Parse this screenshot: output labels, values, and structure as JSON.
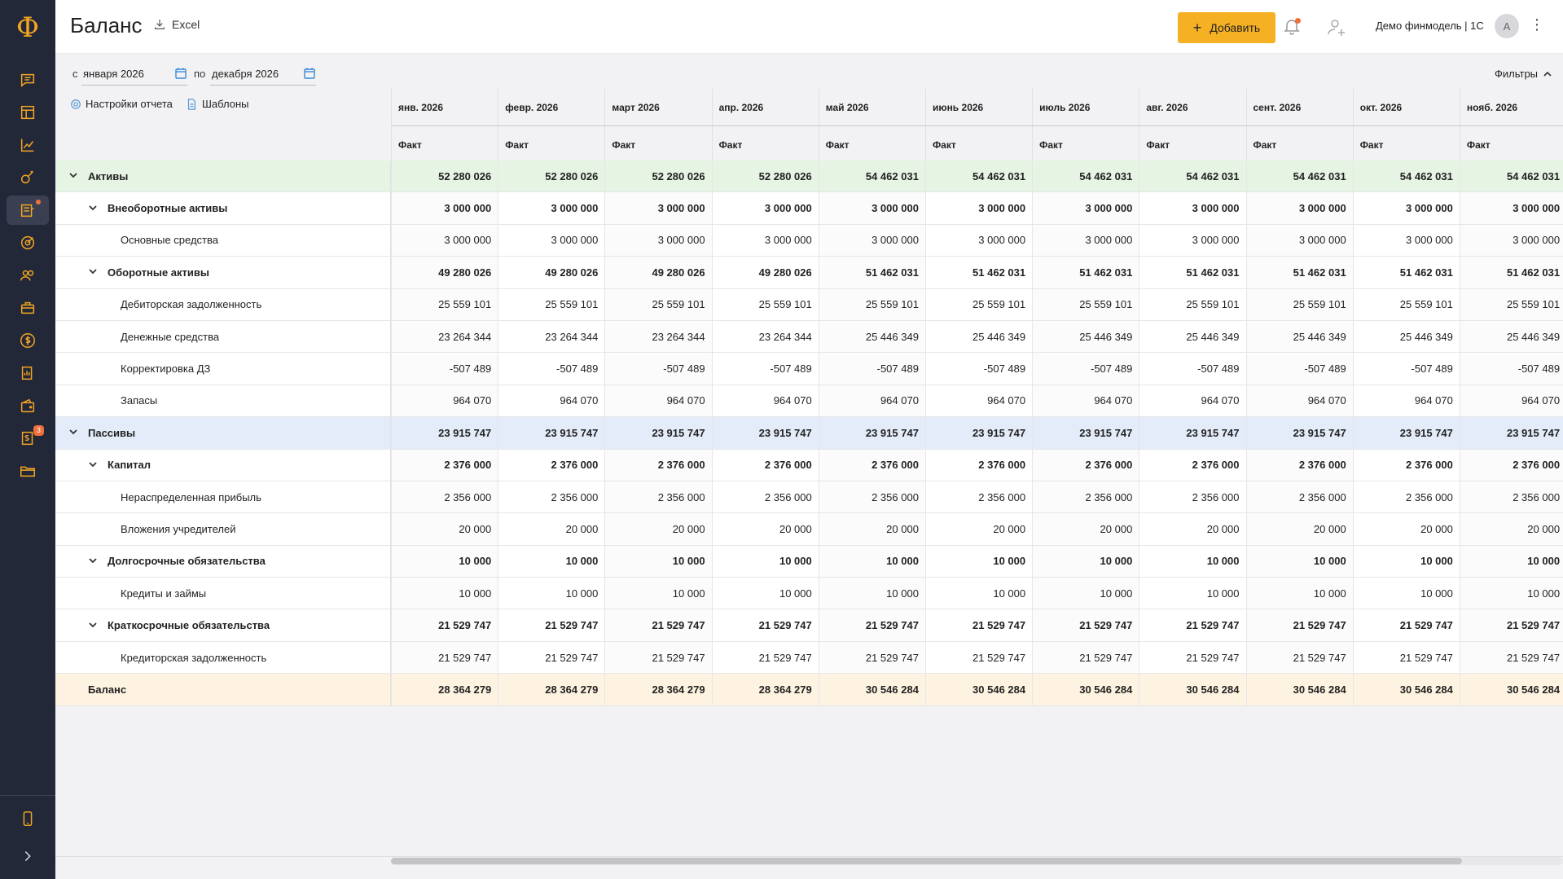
{
  "app": {
    "logo": "Ф",
    "title": "Баланс",
    "export_label": "Excel"
  },
  "header": {
    "add_label": "Добавить",
    "workspace": "Демо финмодель | 1С",
    "avatar_initial": "А",
    "more": "⋮"
  },
  "sidebar": {
    "items": [
      {
        "icon": "chat-icon"
      },
      {
        "icon": "table-icon"
      },
      {
        "icon": "chart-icon"
      },
      {
        "icon": "analytics-icon"
      },
      {
        "icon": "balance-icon",
        "active": true,
        "dot": true
      },
      {
        "icon": "target-icon"
      },
      {
        "icon": "users-icon"
      },
      {
        "icon": "briefcase-icon"
      },
      {
        "icon": "dollar-icon"
      },
      {
        "icon": "reports-icon"
      },
      {
        "icon": "wallet-icon"
      },
      {
        "icon": "invoice-icon",
        "badge": "3"
      },
      {
        "icon": "folder-icon"
      }
    ],
    "bottom": [
      {
        "icon": "mobile-icon"
      },
      {
        "icon": "expand-icon"
      }
    ]
  },
  "filters": {
    "from_prefix": "с",
    "from_value": "января 2026",
    "to_prefix": "по",
    "to_value": "декабря 2026",
    "filters_label": "Фильтры",
    "settings_label": "Настройки отчета",
    "templates_label": "Шаблоны"
  },
  "table": {
    "months": [
      "янв. 2026",
      "февр. 2026",
      "март 2026",
      "апр. 2026",
      "май 2026",
      "июнь 2026",
      "июль 2026",
      "авг. 2026",
      "сент. 2026",
      "окт. 2026",
      "нояб. 2026"
    ],
    "sub_header": "Факт",
    "rows": [
      {
        "label": "Активы",
        "level": 0,
        "kind": "assets",
        "bold": true,
        "chevron": true,
        "values": [
          "52 280 026",
          "52 280 026",
          "52 280 026",
          "52 280 026",
          "54 462 031",
          "54 462 031",
          "54 462 031",
          "54 462 031",
          "54 462 031",
          "54 462 031",
          "54 462 031"
        ]
      },
      {
        "label": "Внеоборотные активы",
        "level": 1,
        "bold": true,
        "chevron": true,
        "values": [
          "3 000 000",
          "3 000 000",
          "3 000 000",
          "3 000 000",
          "3 000 000",
          "3 000 000",
          "3 000 000",
          "3 000 000",
          "3 000 000",
          "3 000 000",
          "3 000 000"
        ]
      },
      {
        "label": "Основные средства",
        "level": 2,
        "values": [
          "3 000 000",
          "3 000 000",
          "3 000 000",
          "3 000 000",
          "3 000 000",
          "3 000 000",
          "3 000 000",
          "3 000 000",
          "3 000 000",
          "3 000 000",
          "3 000 000"
        ]
      },
      {
        "label": "Оборотные активы",
        "level": 1,
        "bold": true,
        "chevron": true,
        "values": [
          "49 280 026",
          "49 280 026",
          "49 280 026",
          "49 280 026",
          "51 462 031",
          "51 462 031",
          "51 462 031",
          "51 462 031",
          "51 462 031",
          "51 462 031",
          "51 462 031"
        ]
      },
      {
        "label": "Дебиторская задолженность",
        "level": 2,
        "values": [
          "25 559 101",
          "25 559 101",
          "25 559 101",
          "25 559 101",
          "25 559 101",
          "25 559 101",
          "25 559 101",
          "25 559 101",
          "25 559 101",
          "25 559 101",
          "25 559 101"
        ]
      },
      {
        "label": "Денежные средства",
        "level": 2,
        "values": [
          "23 264 344",
          "23 264 344",
          "23 264 344",
          "23 264 344",
          "25 446 349",
          "25 446 349",
          "25 446 349",
          "25 446 349",
          "25 446 349",
          "25 446 349",
          "25 446 349"
        ]
      },
      {
        "label": "Корректировка ДЗ",
        "level": 2,
        "values": [
          "-507 489",
          "-507 489",
          "-507 489",
          "-507 489",
          "-507 489",
          "-507 489",
          "-507 489",
          "-507 489",
          "-507 489",
          "-507 489",
          "-507 489"
        ]
      },
      {
        "label": "Запасы",
        "level": 2,
        "values": [
          "964 070",
          "964 070",
          "964 070",
          "964 070",
          "964 070",
          "964 070",
          "964 070",
          "964 070",
          "964 070",
          "964 070",
          "964 070"
        ]
      },
      {
        "label": "Пассивы",
        "level": 0,
        "kind": "liab",
        "bold": true,
        "chevron": true,
        "values": [
          "23 915 747",
          "23 915 747",
          "23 915 747",
          "23 915 747",
          "23 915 747",
          "23 915 747",
          "23 915 747",
          "23 915 747",
          "23 915 747",
          "23 915 747",
          "23 915 747"
        ]
      },
      {
        "label": "Капитал",
        "level": 1,
        "bold": true,
        "chevron": true,
        "values": [
          "2 376 000",
          "2 376 000",
          "2 376 000",
          "2 376 000",
          "2 376 000",
          "2 376 000",
          "2 376 000",
          "2 376 000",
          "2 376 000",
          "2 376 000",
          "2 376 000"
        ]
      },
      {
        "label": "Нераспределенная прибыль",
        "level": 2,
        "values": [
          "2 356 000",
          "2 356 000",
          "2 356 000",
          "2 356 000",
          "2 356 000",
          "2 356 000",
          "2 356 000",
          "2 356 000",
          "2 356 000",
          "2 356 000",
          "2 356 000"
        ]
      },
      {
        "label": "Вложения учредителей",
        "level": 2,
        "values": [
          "20 000",
          "20 000",
          "20 000",
          "20 000",
          "20 000",
          "20 000",
          "20 000",
          "20 000",
          "20 000",
          "20 000",
          "20 000"
        ]
      },
      {
        "label": "Долгосрочные обязательства",
        "level": 1,
        "bold": true,
        "chevron": true,
        "values": [
          "10 000",
          "10 000",
          "10 000",
          "10 000",
          "10 000",
          "10 000",
          "10 000",
          "10 000",
          "10 000",
          "10 000",
          "10 000"
        ]
      },
      {
        "label": "Кредиты и займы",
        "level": 2,
        "values": [
          "10 000",
          "10 000",
          "10 000",
          "10 000",
          "10 000",
          "10 000",
          "10 000",
          "10 000",
          "10 000",
          "10 000",
          "10 000"
        ]
      },
      {
        "label": "Краткосрочные обязательства",
        "level": 1,
        "bold": true,
        "chevron": true,
        "values": [
          "21 529 747",
          "21 529 747",
          "21 529 747",
          "21 529 747",
          "21 529 747",
          "21 529 747",
          "21 529 747",
          "21 529 747",
          "21 529 747",
          "21 529 747",
          "21 529 747"
        ]
      },
      {
        "label": "Кредиторская задолженность",
        "level": 2,
        "values": [
          "21 529 747",
          "21 529 747",
          "21 529 747",
          "21 529 747",
          "21 529 747",
          "21 529 747",
          "21 529 747",
          "21 529 747",
          "21 529 747",
          "21 529 747",
          "21 529 747"
        ]
      },
      {
        "label": "Баланс",
        "level": 0,
        "kind": "total",
        "bold": true,
        "chevron": false,
        "values": [
          "28 364 279",
          "28 364 279",
          "28 364 279",
          "28 364 279",
          "30 546 284",
          "30 546 284",
          "30 546 284",
          "30 546 284",
          "30 546 284",
          "30 546 284",
          "30 546 284"
        ]
      }
    ]
  },
  "colors": {
    "accent": "#f5b024",
    "sidebar": "#232838",
    "assets_row": "#e6f4e3",
    "liab_row": "#e3ecf8",
    "total_row": "#fdf3e0"
  }
}
